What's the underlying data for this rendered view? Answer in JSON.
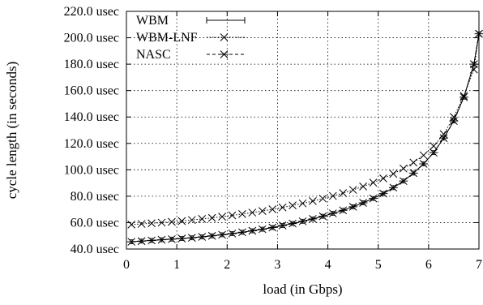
{
  "chart_data": {
    "type": "line",
    "xlabel": "load (in Gbps)",
    "ylabel": "cycle length (in seconds)",
    "xlim": [
      0,
      7
    ],
    "ylim": [
      40,
      220
    ],
    "x_ticks": [
      "0",
      "1",
      "2",
      "3",
      "4",
      "5",
      "6",
      "7"
    ],
    "y_ticks": [
      "40.0 usec",
      "60.0 usec",
      "80.0 usec",
      "100.0 usec",
      "120.0 usec",
      "140.0 usec",
      "160.0 usec",
      "180.0 usec",
      "200.0 usec",
      "220.0 usec"
    ],
    "y_tick_values": [
      40,
      60,
      80,
      100,
      120,
      140,
      160,
      180,
      200,
      220
    ],
    "grid": true,
    "legend_position": "top-left",
    "series": [
      {
        "name": "WBM",
        "marker": "errorbar",
        "x": [
          0.1,
          0.3,
          0.5,
          0.7,
          0.9,
          1.1,
          1.3,
          1.5,
          1.7,
          1.9,
          2.1,
          2.3,
          2.5,
          2.7,
          2.9,
          3.1,
          3.3,
          3.5,
          3.7,
          3.9,
          4.1,
          4.3,
          4.5,
          4.7,
          4.9,
          5.1,
          5.3,
          5.5,
          5.7,
          5.9,
          6.1,
          6.3,
          6.5,
          6.7,
          6.9,
          7.0
        ],
        "y": [
          45.5,
          46,
          46.5,
          47,
          47.5,
          48,
          48.5,
          49.2,
          50,
          50.8,
          51.7,
          52.7,
          53.8,
          55,
          56.3,
          57.8,
          59.3,
          61,
          62.8,
          64.8,
          67,
          69.3,
          72,
          75,
          78.3,
          82,
          86.5,
          91.5,
          97.5,
          104.5,
          113,
          124,
          137,
          155,
          180,
          203
        ]
      },
      {
        "name": "WBM-LNF",
        "marker": "x",
        "x": [
          0.1,
          0.3,
          0.5,
          0.7,
          0.9,
          1.1,
          1.3,
          1.5,
          1.7,
          1.9,
          2.1,
          2.3,
          2.5,
          2.7,
          2.9,
          3.1,
          3.3,
          3.5,
          3.7,
          3.9,
          4.1,
          4.3,
          4.5,
          4.7,
          4.9,
          5.1,
          5.3,
          5.5,
          5.7,
          5.9,
          6.1,
          6.3,
          6.5,
          6.7,
          6.9,
          7.0
        ],
        "y": [
          58.5,
          59,
          59.5,
          60,
          60.6,
          61.2,
          62,
          62.8,
          63.6,
          64.5,
          65.5,
          66.5,
          67.6,
          68.8,
          70.1,
          71.5,
          73,
          74.6,
          76.3,
          78.2,
          80.2,
          82.4,
          84.8,
          87.4,
          90.3,
          93.5,
          97,
          101,
          105.5,
          111,
          118,
          127,
          140,
          156,
          176,
          203
        ]
      },
      {
        "name": "NASC",
        "marker": "asterisk",
        "x": [
          0.1,
          0.3,
          0.5,
          0.7,
          0.9,
          1.1,
          1.3,
          1.5,
          1.7,
          1.9,
          2.1,
          2.3,
          2.5,
          2.7,
          2.9,
          3.1,
          3.3,
          3.5,
          3.7,
          3.9,
          4.1,
          4.3,
          4.5,
          4.7,
          4.9,
          5.1,
          5.3,
          5.5,
          5.7,
          5.9,
          6.1,
          6.3,
          6.5,
          6.7,
          6.9,
          7.0
        ],
        "y": [
          45.5,
          46,
          46.5,
          47,
          47.5,
          48,
          48.5,
          49.2,
          50,
          50.8,
          51.7,
          52.7,
          53.8,
          55,
          56.3,
          57.8,
          59.3,
          61,
          62.8,
          64.8,
          67,
          69.3,
          72,
          75,
          78.3,
          82,
          86.5,
          91.5,
          97.5,
          104.5,
          113,
          124,
          137,
          155,
          180,
          203
        ]
      }
    ]
  }
}
